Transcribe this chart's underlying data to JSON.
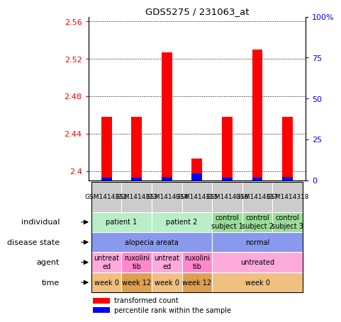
{
  "title": "GDS5275 / 231063_at",
  "samples": [
    "GSM1414312",
    "GSM1414313",
    "GSM1414314",
    "GSM1414315",
    "GSM1414316",
    "GSM1414317",
    "GSM1414318"
  ],
  "red_values": [
    2.458,
    2.458,
    2.527,
    2.413,
    2.458,
    2.53,
    2.458
  ],
  "blue_values": [
    1.5,
    1.5,
    2.0,
    4.0,
    1.5,
    1.5,
    2.0
  ],
  "ylim_left": [
    2.39,
    2.565
  ],
  "ylim_right": [
    0,
    100
  ],
  "yticks_left": [
    2.4,
    2.44,
    2.48,
    2.52,
    2.56
  ],
  "yticks_right": [
    0,
    25,
    50,
    75,
    100
  ],
  "ytick_labels_left": [
    "2.4",
    "2.44",
    "2.48",
    "2.52",
    "2.56"
  ],
  "ytick_labels_right": [
    "0",
    "25",
    "50",
    "75",
    "100%"
  ],
  "bar_bottom": 2.39,
  "individual_cells": [
    {
      "label": "patient 1",
      "span": [
        0,
        1
      ],
      "color": "#b8eec8"
    },
    {
      "label": "patient 2",
      "span": [
        2,
        3
      ],
      "color": "#b8eec8"
    },
    {
      "label": "control\nsubject 1",
      "span": [
        4,
        4
      ],
      "color": "#99dd99"
    },
    {
      "label": "control\nsubject 2",
      "span": [
        5,
        5
      ],
      "color": "#99dd99"
    },
    {
      "label": "control\nsubject 3",
      "span": [
        6,
        6
      ],
      "color": "#99dd99"
    }
  ],
  "disease_cells": [
    {
      "label": "alopecia areata",
      "span": [
        0,
        3
      ],
      "color": "#8899ee"
    },
    {
      "label": "normal",
      "span": [
        4,
        6
      ],
      "color": "#8899ee"
    }
  ],
  "agent_cells": [
    {
      "label": "untreat\ned",
      "span": [
        0,
        0
      ],
      "color": "#ffaadd"
    },
    {
      "label": "ruxolini\ntib",
      "span": [
        1,
        1
      ],
      "color": "#ff88cc"
    },
    {
      "label": "untreat\ned",
      "span": [
        2,
        2
      ],
      "color": "#ffaadd"
    },
    {
      "label": "ruxolini\ntib",
      "span": [
        3,
        3
      ],
      "color": "#ff88cc"
    },
    {
      "label": "untreated",
      "span": [
        4,
        6
      ],
      "color": "#ffaadd"
    }
  ],
  "time_cells": [
    {
      "label": "week 0",
      "span": [
        0,
        0
      ],
      "color": "#f0c080"
    },
    {
      "label": "week 12",
      "span": [
        1,
        1
      ],
      "color": "#dda050"
    },
    {
      "label": "week 0",
      "span": [
        2,
        2
      ],
      "color": "#f0c080"
    },
    {
      "label": "week 12",
      "span": [
        3,
        3
      ],
      "color": "#dda050"
    },
    {
      "label": "week 0",
      "span": [
        4,
        6
      ],
      "color": "#f0c080"
    }
  ],
  "row_label_names": [
    "individual",
    "disease state",
    "agent",
    "time"
  ],
  "sample_bg_color": "#cccccc",
  "chart_bg": "white",
  "bar_width": 0.35
}
